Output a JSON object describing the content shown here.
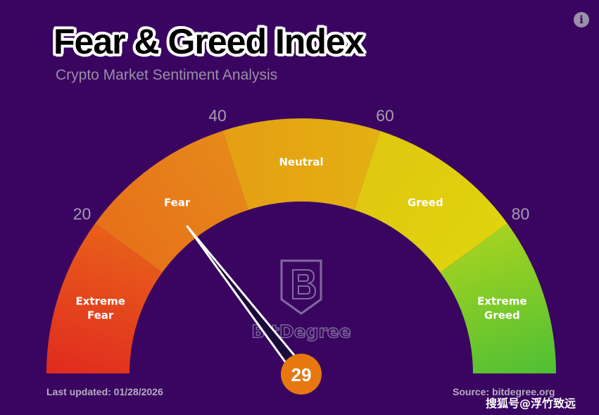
{
  "header": {
    "title": "Fear & Greed Index",
    "subtitle": "Crypto Market Sentiment Analysis"
  },
  "info_icon": {
    "icon": "info-icon",
    "glyph": "i"
  },
  "gauge": {
    "min": 0,
    "max": 100,
    "value": 29,
    "value_label": "29",
    "ticks": [
      {
        "value": 20,
        "label": "20"
      },
      {
        "value": 40,
        "label": "40"
      },
      {
        "value": 60,
        "label": "60"
      },
      {
        "value": 80,
        "label": "80"
      }
    ],
    "segments": [
      {
        "from": 0,
        "to": 20,
        "lines": [
          "Extreme",
          "Fear"
        ],
        "color_outer": "#e02a1f",
        "color_inner": "#e8601a"
      },
      {
        "from": 20,
        "to": 40,
        "lines": [
          "Fear"
        ],
        "color_outer": "#e7701a",
        "color_inner": "#e6891a"
      },
      {
        "from": 40,
        "to": 60,
        "lines": [
          "Neutral"
        ],
        "color_outer": "#e59e14",
        "color_inner": "#e3b012"
      },
      {
        "from": 60,
        "to": 80,
        "lines": [
          "Greed"
        ],
        "color_outer": "#e0c610",
        "color_inner": "#dfd40e"
      },
      {
        "from": 80,
        "to": 100,
        "lines": [
          "Extreme",
          "Greed"
        ],
        "color_outer": "#a5d320",
        "color_inner": "#4fbf35"
      }
    ],
    "needle_color": "#1d0a3d",
    "hub_color": "#e6780f",
    "logo_text": "BitDegree"
  },
  "footer": {
    "last_updated": "Last updated: 01/28/2026",
    "source": "Source: bitdegree.org",
    "watermark": "搜狐号@浮竹致远"
  }
}
